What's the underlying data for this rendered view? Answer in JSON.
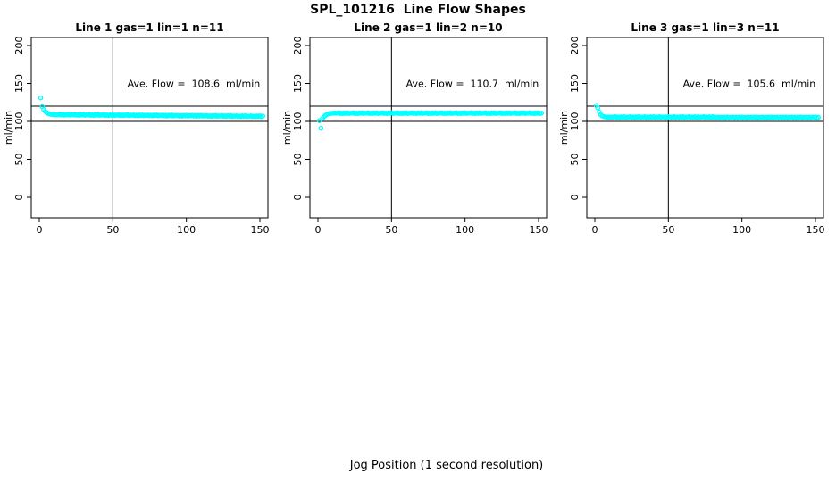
{
  "figure": {
    "title": "SPL_101216  Line Flow Shapes",
    "xlabel": "Jog Position (1 second resolution)",
    "background": "#FFFFFF",
    "foreground": "#000000"
  },
  "chart_data": [
    {
      "type": "scatter",
      "title": "Line 1 gas=1 lin=1 n=11",
      "annotation": "Ave. Flow =  108.6  ml/min",
      "ave_flow_ml_min": 108.6,
      "ylabel": "ml/min",
      "xticks": [
        0,
        50,
        100,
        150
      ],
      "yticks": [
        0,
        50,
        100,
        150,
        200
      ],
      "xlim": [
        -6,
        156
      ],
      "ylim": [
        -27,
        210
      ],
      "ref_lines_y": [
        100,
        120
      ],
      "ref_line_x": 50,
      "point_color": "#00FFFF",
      "x_start": 1,
      "x_step": 1,
      "y": [
        131.0,
        119.5,
        115.8,
        113.2,
        111.5,
        110.4,
        109.7,
        109.3,
        109.0,
        108.9,
        108.8,
        108.7,
        108.7,
        109.3,
        108.3,
        109.0,
        108.1,
        109.2,
        108.5,
        109.4,
        108.2,
        108.9,
        108.5,
        109.1,
        108.1,
        108.8,
        107.9,
        109.0,
        108.3,
        109.2,
        108.0,
        108.7,
        108.4,
        109.0,
        108.0,
        108.7,
        107.8,
        108.9,
        108.2,
        109.1,
        107.9,
        108.6,
        108.2,
        108.8,
        107.8,
        108.5,
        107.6,
        108.7,
        108.0,
        108.9,
        107.7,
        108.4,
        108.1,
        108.7,
        107.7,
        108.4,
        107.5,
        108.6,
        107.9,
        108.8,
        107.6,
        108.3,
        107.9,
        108.5,
        107.5,
        108.2,
        107.3,
        108.4,
        107.7,
        108.6,
        107.4,
        108.1,
        107.8,
        108.4,
        107.4,
        108.1,
        107.2,
        108.3,
        107.6,
        108.5,
        107.3,
        108.0,
        107.6,
        108.2,
        107.2,
        107.9,
        107.0,
        108.1,
        107.4,
        108.3,
        107.1,
        107.8,
        107.4,
        108.0,
        107.0,
        107.7,
        106.8,
        107.9,
        107.2,
        108.1,
        106.9,
        107.6,
        107.3,
        107.9,
        106.9,
        107.6,
        106.7,
        107.8,
        107.1,
        108.0,
        106.8,
        107.5,
        107.1,
        107.7,
        106.7,
        107.4,
        106.5,
        107.6,
        106.9,
        107.8,
        106.6,
        107.3,
        107.0,
        107.6,
        106.6,
        107.3,
        106.4,
        107.5,
        106.8,
        107.7,
        106.5,
        107.2,
        106.8,
        107.4,
        106.4,
        107.1,
        106.2,
        107.3,
        106.6,
        107.5,
        106.3,
        107.0,
        106.7,
        107.3,
        106.3,
        107.0,
        106.1,
        107.2,
        106.5,
        107.4,
        106.2,
        106.9
      ]
    },
    {
      "type": "scatter",
      "title": "Line 2 gas=1 lin=2 n=10",
      "annotation": "Ave. Flow =  110.7  ml/min",
      "ave_flow_ml_min": 110.7,
      "ylabel": "ml/min",
      "xticks": [
        0,
        50,
        100,
        150
      ],
      "yticks": [
        0,
        50,
        100,
        150,
        200
      ],
      "xlim": [
        -6,
        156
      ],
      "ylim": [
        -27,
        210
      ],
      "ref_lines_y": [
        100,
        120
      ],
      "ref_line_x": 50,
      "point_color": "#00FFFF",
      "x_start": 1,
      "x_step": 1,
      "y": [
        101.0,
        91.0,
        103.5,
        106.0,
        107.8,
        109.0,
        109.8,
        110.3,
        110.6,
        110.7,
        110.8,
        110.8,
        110.8,
        111.4,
        110.4,
        111.1,
        110.2,
        111.3,
        110.6,
        111.5,
        110.3,
        111.0,
        110.8,
        111.4,
        110.4,
        111.1,
        110.2,
        111.3,
        110.6,
        111.5,
        110.3,
        111.0,
        110.8,
        111.4,
        110.4,
        111.1,
        110.2,
        111.3,
        110.6,
        111.5,
        110.3,
        111.0,
        110.8,
        111.4,
        110.4,
        111.1,
        110.2,
        111.3,
        110.6,
        111.5,
        110.3,
        111.0,
        110.8,
        111.4,
        110.4,
        111.1,
        110.2,
        111.3,
        110.6,
        111.5,
        110.3,
        111.0,
        110.8,
        111.4,
        110.4,
        111.1,
        110.2,
        111.3,
        110.6,
        111.5,
        110.3,
        111.0,
        110.8,
        111.4,
        110.4,
        111.1,
        110.2,
        111.3,
        110.6,
        111.5,
        110.3,
        111.0,
        110.8,
        111.4,
        110.4,
        111.1,
        110.2,
        111.3,
        110.6,
        111.5,
        110.3,
        111.0,
        110.8,
        111.4,
        110.4,
        111.1,
        110.2,
        111.3,
        110.6,
        111.5,
        110.3,
        111.0,
        110.8,
        111.4,
        110.4,
        111.1,
        110.2,
        111.3,
        110.6,
        111.5,
        110.3,
        111.0,
        110.8,
        111.4,
        110.4,
        111.1,
        110.2,
        111.3,
        110.6,
        111.5,
        110.3,
        111.0,
        110.8,
        111.4,
        110.4,
        111.1,
        110.2,
        111.3,
        110.6,
        111.5,
        110.3,
        111.0,
        110.8,
        111.4,
        110.4,
        111.1,
        110.2,
        111.3,
        110.6,
        111.5,
        110.3,
        111.0,
        110.8,
        111.4,
        110.4,
        111.1,
        110.2,
        111.3,
        110.6,
        111.5,
        110.3,
        111.0
      ]
    },
    {
      "type": "scatter",
      "title": "Line 3 gas=1 lin=3 n=11",
      "annotation": "Ave. Flow =  105.6  ml/min",
      "ave_flow_ml_min": 105.6,
      "ylabel": "ml/min",
      "xticks": [
        0,
        50,
        100,
        150
      ],
      "yticks": [
        0,
        50,
        100,
        150,
        200
      ],
      "xlim": [
        -6,
        156
      ],
      "ylim": [
        -27,
        210
      ],
      "ref_lines_y": [
        100,
        120
      ],
      "ref_line_x": 50,
      "point_color": "#00FFFF",
      "x_start": 1,
      "x_step": 1,
      "y": [
        121.0,
        118.0,
        112.5,
        109.0,
        107.2,
        106.3,
        105.9,
        105.7,
        105.6,
        105.6,
        105.5,
        105.5,
        105.5,
        106.1,
        105.1,
        105.8,
        104.9,
        106.0,
        105.3,
        106.2,
        105.0,
        105.7,
        105.5,
        106.1,
        105.1,
        105.8,
        104.9,
        106.0,
        105.3,
        106.2,
        105.0,
        105.7,
        105.5,
        106.1,
        105.1,
        105.8,
        104.9,
        106.0,
        105.3,
        106.2,
        105.0,
        105.7,
        105.5,
        106.1,
        105.1,
        105.8,
        104.9,
        106.0,
        105.3,
        106.2,
        105.0,
        105.7,
        105.5,
        106.1,
        105.1,
        105.8,
        104.9,
        106.0,
        105.3,
        106.2,
        105.0,
        105.7,
        105.5,
        106.1,
        105.1,
        105.8,
        104.9,
        106.0,
        105.3,
        106.2,
        105.0,
        105.7,
        105.5,
        106.1,
        105.1,
        105.8,
        104.9,
        106.0,
        105.3,
        106.2,
        105.0,
        105.7,
        105.1,
        105.7,
        104.7,
        105.4,
        104.5,
        105.6,
        104.9,
        105.8,
        104.6,
        105.3,
        105.1,
        105.7,
        104.7,
        105.4,
        104.5,
        105.6,
        104.9,
        105.8,
        104.6,
        105.3,
        105.1,
        105.7,
        104.7,
        105.4,
        104.5,
        105.6,
        104.9,
        105.8,
        104.6,
        105.3,
        105.1,
        105.7,
        104.7,
        105.4,
        104.5,
        105.6,
        104.9,
        105.8,
        104.6,
        105.3,
        105.1,
        105.7,
        104.7,
        105.4,
        104.5,
        105.6,
        104.9,
        105.8,
        104.6,
        105.3,
        105.1,
        105.7,
        104.7,
        105.4,
        104.5,
        105.6,
        104.9,
        105.8,
        104.6,
        105.3,
        105.1,
        105.7,
        104.7,
        105.4,
        104.5,
        105.6,
        104.9,
        105.8,
        104.6,
        105.3
      ]
    }
  ]
}
